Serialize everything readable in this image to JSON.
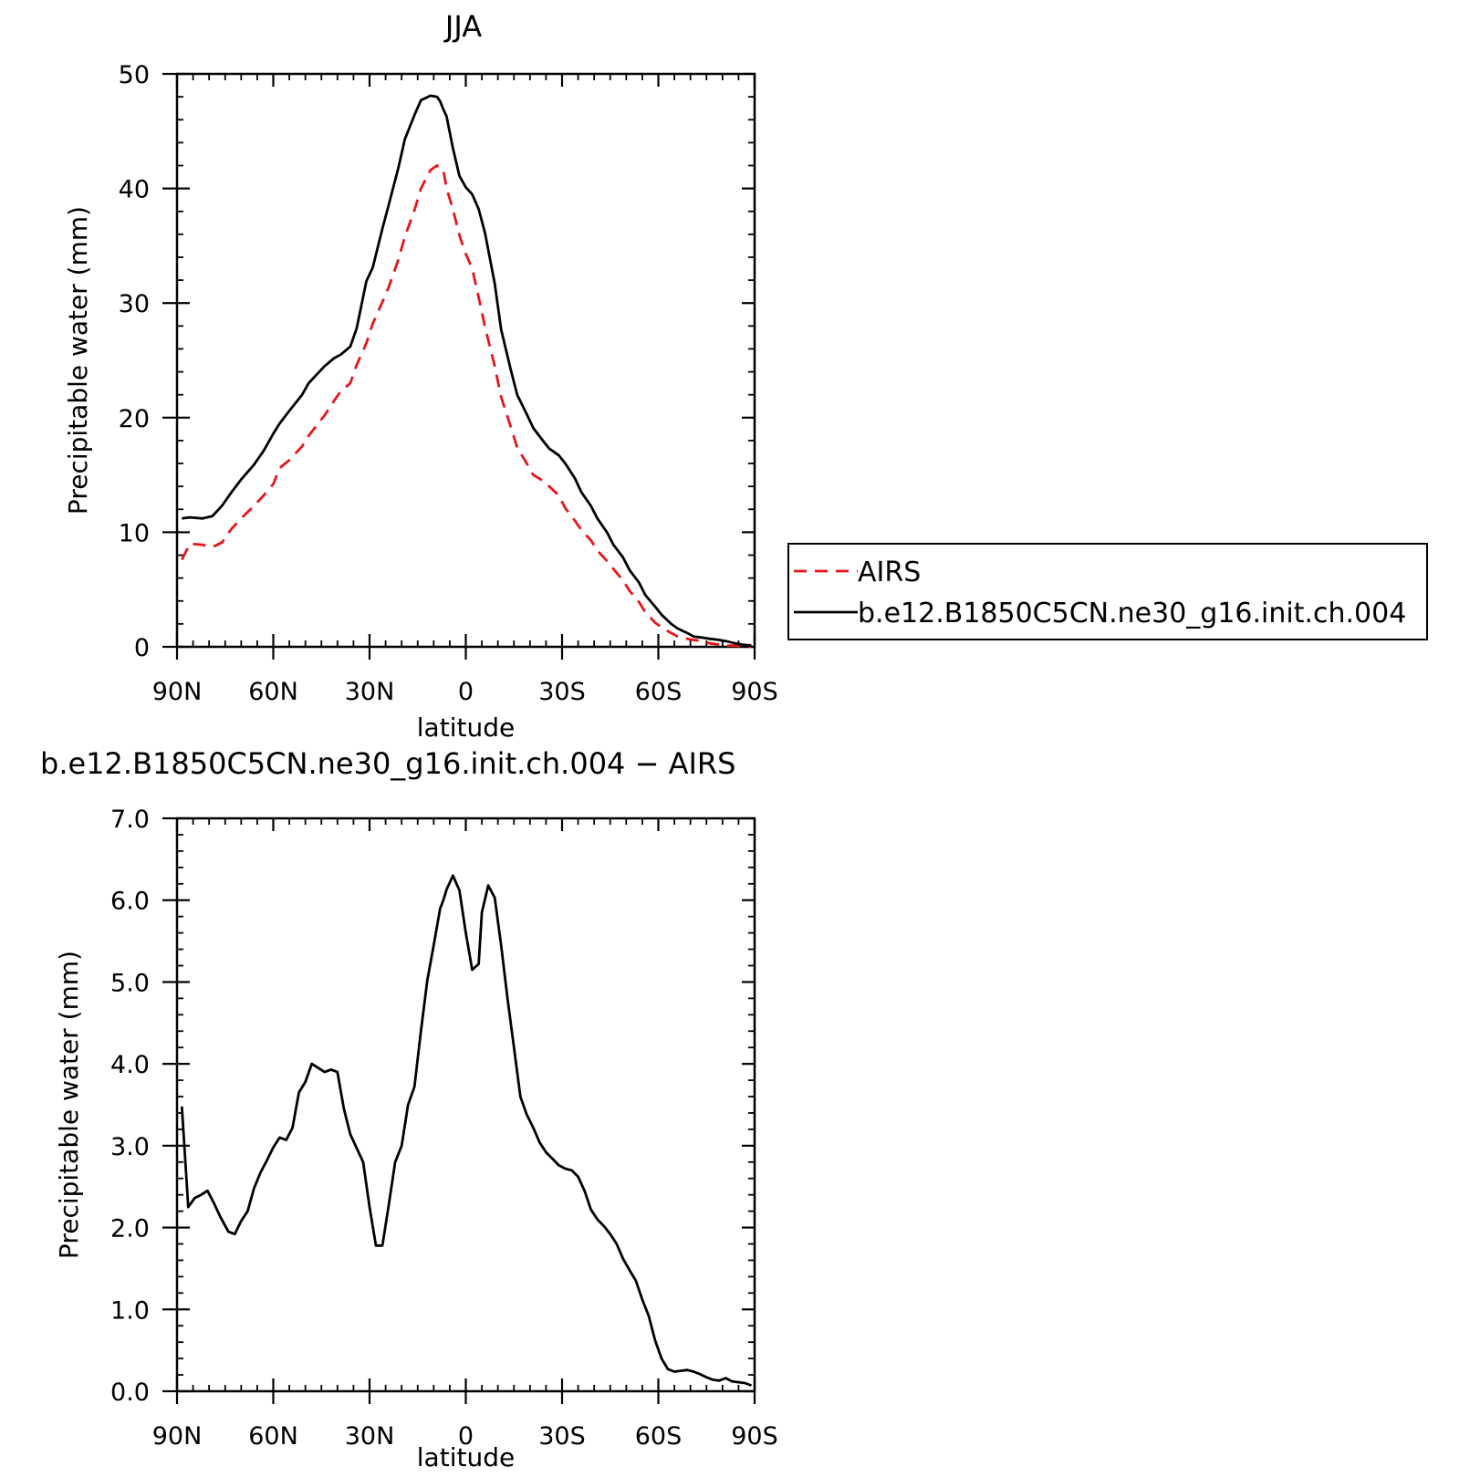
{
  "chart_data": [
    {
      "type": "line",
      "title": "JJA",
      "xlabel": "latitude",
      "ylabel": "Precipitable water (mm)",
      "x_ticks": [
        {
          "value": -90,
          "label": "90N"
        },
        {
          "value": -60,
          "label": "60N"
        },
        {
          "value": -30,
          "label": "30N"
        },
        {
          "value": 0,
          "label": "0"
        },
        {
          "value": 30,
          "label": "30S"
        },
        {
          "value": 60,
          "label": "60S"
        },
        {
          "value": 90,
          "label": "90S"
        }
      ],
      "y_ticks": [
        {
          "value": 0,
          "label": "0"
        },
        {
          "value": 10,
          "label": "10"
        },
        {
          "value": 20,
          "label": "20"
        },
        {
          "value": 30,
          "label": "30"
        },
        {
          "value": 40,
          "label": "40"
        },
        {
          "value": 50,
          "label": "50"
        }
      ],
      "xlim": [
        -90,
        90
      ],
      "ylim": [
        0,
        50
      ],
      "legend_position": "right",
      "series": [
        {
          "name": "AIRS",
          "color": "#e8141a",
          "style": "dashed",
          "x": [
            -88.5,
            -86,
            -82,
            -79,
            -76,
            -73,
            -70,
            -66,
            -63,
            -60,
            -58,
            -55,
            -51,
            -49,
            -46,
            -44,
            -41,
            -39,
            -36,
            -34,
            -31,
            -29,
            -26,
            -24,
            -21,
            -19,
            -16,
            -14,
            -11,
            -9,
            -8,
            -7,
            -6,
            -4,
            -2,
            0,
            2,
            4,
            6,
            9,
            11,
            14,
            16,
            19,
            21,
            24,
            26,
            29,
            31,
            34,
            36,
            39,
            41,
            44,
            46,
            49,
            51,
            54,
            56,
            59,
            61,
            64,
            66,
            69,
            71,
            74,
            76,
            79,
            81,
            84,
            86,
            89
          ],
          "y": [
            7.6,
            9.0,
            8.9,
            8.7,
            9.1,
            10.3,
            11.2,
            12.3,
            13.2,
            14.2,
            15.6,
            16.3,
            17.5,
            18.4,
            19.5,
            20.2,
            21.5,
            22.3,
            23.0,
            24.6,
            26.5,
            28.2,
            30.1,
            31.4,
            33.8,
            35.8,
            38.1,
            40.0,
            41.6,
            42.0,
            41.9,
            41.6,
            40.0,
            38.2,
            35.9,
            34.3,
            33.0,
            30.5,
            27.9,
            24.5,
            21.8,
            19.2,
            17.4,
            16.0,
            15.0,
            14.5,
            14.0,
            13.2,
            12.1,
            11.0,
            10.2,
            9.3,
            8.4,
            7.5,
            6.8,
            5.8,
            4.9,
            3.9,
            3.0,
            2.1,
            1.7,
            1.2,
            0.9,
            0.7,
            0.6,
            0.5,
            0.3,
            0.2,
            0.1,
            0.1,
            0.05,
            0.05
          ]
        },
        {
          "name": "b.e12.B1850C5CN.ne30_g16.init.ch.004",
          "color": "#000000",
          "style": "solid",
          "x": [
            -88.5,
            -86,
            -82,
            -79,
            -76,
            -73,
            -70,
            -66,
            -63,
            -60,
            -58,
            -55,
            -51,
            -49,
            -46,
            -44,
            -41,
            -39,
            -36,
            -34,
            -31,
            -29,
            -26,
            -24,
            -21,
            -19,
            -16,
            -14,
            -11,
            -9,
            -8,
            -7,
            -6,
            -4,
            -2,
            0,
            2,
            4,
            6,
            9,
            11,
            14,
            16,
            19,
            21,
            24,
            26,
            29,
            31,
            34,
            36,
            39,
            41,
            44,
            46,
            49,
            51,
            54,
            56,
            59,
            61,
            64,
            66,
            69,
            71,
            74,
            76,
            79,
            81,
            84,
            86,
            89
          ],
          "y": [
            11.2,
            11.3,
            11.2,
            11.4,
            12.3,
            13.5,
            14.6,
            15.9,
            17.1,
            18.6,
            19.5,
            20.6,
            22.0,
            23.0,
            23.9,
            24.5,
            25.2,
            25.5,
            26.2,
            27.8,
            31.9,
            33.1,
            36.5,
            38.6,
            41.8,
            44.3,
            46.4,
            47.7,
            48.1,
            48.0,
            47.6,
            46.9,
            46.3,
            43.5,
            41.1,
            40.1,
            39.5,
            38.2,
            36.1,
            31.7,
            27.7,
            24.2,
            22.0,
            20.3,
            19.1,
            18.0,
            17.3,
            16.7,
            16.0,
            14.7,
            13.5,
            12.3,
            11.2,
            10.0,
            8.9,
            7.8,
            6.7,
            5.6,
            4.5,
            3.5,
            2.8,
            2.0,
            1.6,
            1.2,
            0.9,
            0.8,
            0.7,
            0.6,
            0.5,
            0.3,
            0.2,
            0.1
          ]
        }
      ]
    },
    {
      "type": "line",
      "title": "b.e12.B1850C5CN.ne30_g16.init.ch.004 − AIRS",
      "xlabel": "latitude",
      "ylabel": "Precipitable water (mm)",
      "x_ticks": [
        {
          "value": -90,
          "label": "90N"
        },
        {
          "value": -60,
          "label": "60N"
        },
        {
          "value": -30,
          "label": "30N"
        },
        {
          "value": 0,
          "label": "0"
        },
        {
          "value": 30,
          "label": "30S"
        },
        {
          "value": 60,
          "label": "60S"
        },
        {
          "value": 90,
          "label": "90S"
        }
      ],
      "y_ticks": [
        {
          "value": 0,
          "label": "0.0"
        },
        {
          "value": 1,
          "label": "1.0"
        },
        {
          "value": 2,
          "label": "2.0"
        },
        {
          "value": 3,
          "label": "3.0"
        },
        {
          "value": 4,
          "label": "4.0"
        },
        {
          "value": 5,
          "label": "5.0"
        },
        {
          "value": 6,
          "label": "6.0"
        },
        {
          "value": 7,
          "label": "7.0"
        }
      ],
      "xlim": [
        -90,
        90
      ],
      "ylim": [
        0,
        7
      ],
      "series": [
        {
          "color": "#000000",
          "style": "solid",
          "x": [
            -88.5,
            -86.5,
            -84.5,
            -82.5,
            -80.5,
            -78.5,
            -76.5,
            -74,
            -72,
            -70,
            -68,
            -66,
            -64,
            -62,
            -60,
            -58,
            -56,
            -54,
            -52,
            -50,
            -48,
            -46,
            -44,
            -42,
            -40,
            -38,
            -36,
            -34,
            -32,
            -30,
            -28,
            -26,
            -24,
            -22,
            -20,
            -18,
            -16,
            -14,
            -12,
            -10,
            -8,
            -7,
            -6,
            -4,
            -2,
            0,
            2,
            4,
            5,
            7,
            9,
            11,
            13,
            15,
            17,
            19,
            21,
            23,
            25,
            27,
            29,
            31,
            33,
            35,
            37,
            39,
            41,
            43,
            45,
            47,
            49,
            51,
            53,
            55,
            57,
            59,
            61,
            63,
            65,
            67,
            69,
            71,
            73,
            75,
            77,
            79,
            81,
            83,
            85,
            87,
            89
          ],
          "y": [
            3.48,
            2.25,
            2.36,
            2.4,
            2.45,
            2.3,
            2.13,
            1.95,
            1.92,
            2.08,
            2.2,
            2.48,
            2.67,
            2.82,
            2.98,
            3.1,
            3.07,
            3.22,
            3.65,
            3.78,
            4.0,
            3.95,
            3.9,
            3.93,
            3.9,
            3.45,
            3.14,
            2.97,
            2.8,
            2.25,
            1.78,
            1.78,
            2.28,
            2.8,
            3.0,
            3.5,
            3.72,
            4.4,
            5.02,
            5.45,
            5.9,
            6.0,
            6.13,
            6.3,
            6.12,
            5.6,
            5.15,
            5.22,
            5.85,
            6.18,
            6.03,
            5.45,
            4.8,
            4.2,
            3.6,
            3.38,
            3.22,
            3.04,
            2.92,
            2.84,
            2.76,
            2.72,
            2.7,
            2.62,
            2.45,
            2.22,
            2.1,
            2.02,
            1.92,
            1.8,
            1.62,
            1.48,
            1.35,
            1.12,
            0.92,
            0.62,
            0.4,
            0.27,
            0.24,
            0.25,
            0.26,
            0.24,
            0.21,
            0.17,
            0.14,
            0.13,
            0.16,
            0.12,
            0.11,
            0.1,
            0.07
          ]
        }
      ]
    }
  ]
}
